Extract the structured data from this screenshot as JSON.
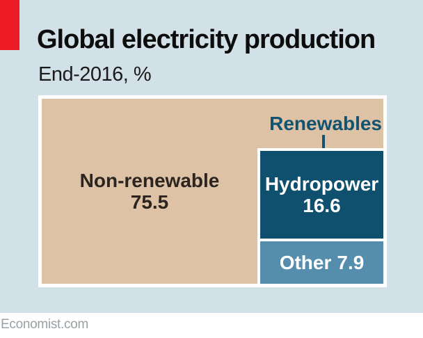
{
  "header": {
    "title": "Global electricity production",
    "subtitle": "End-2016, %"
  },
  "footer": {
    "source": "Economist.com"
  },
  "colors": {
    "canvas_bg": "#d2e0e7",
    "brand_red": "#ed1c24",
    "title_text": "#0d0d0d",
    "subtitle_text": "#1a1a1a",
    "nonrenewable_fill": "#ddc2a6",
    "nonrenewable_text": "#2b241f",
    "hydropower_fill": "#10506f",
    "other_fill": "#548eac",
    "renewables_label_text": "#115370",
    "footer_text": "#9aa0a3",
    "box_border": "#ffffff"
  },
  "chart_data": {
    "type": "treemap",
    "title": "Global electricity production",
    "subtitle": "End-2016, %",
    "unit": "%",
    "group_label": "Renewables",
    "segments": [
      {
        "label": "Non-renewable",
        "value": 75.5,
        "group": null,
        "color": "#ddc2a6"
      },
      {
        "label": "Hydropower",
        "value": 16.6,
        "group": "Renewables",
        "color": "#10506f"
      },
      {
        "label": "Other",
        "value": 7.9,
        "group": "Renewables",
        "color": "#548eac"
      }
    ],
    "layout_hints": {
      "legend": "none",
      "grid": "off",
      "renewables_group_annotated_with_connector_line": true,
      "source_line": "Economist.com"
    }
  }
}
